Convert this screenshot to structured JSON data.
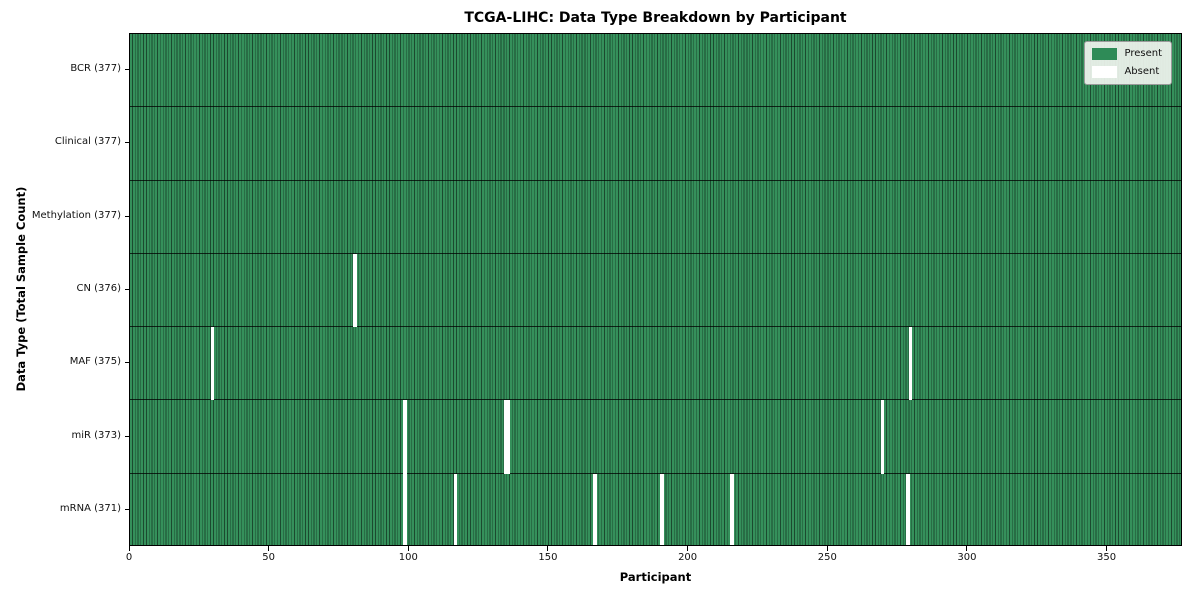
{
  "chart_data": {
    "type": "heatmap",
    "title": "TCGA-LIHC: Data Type Breakdown by Participant",
    "xlabel": "Participant",
    "ylabel": "Data Type (Total Sample Count)",
    "n_participants": 377,
    "x_ticks": [
      0,
      50,
      100,
      150,
      200,
      250,
      300,
      350
    ],
    "xlim": [
      0,
      377
    ],
    "grid": false,
    "legend_position": "upper right",
    "rows": [
      {
        "label": "BCR (377)",
        "present_count": 377,
        "absent_participants": []
      },
      {
        "label": "Clinical (377)",
        "present_count": 377,
        "absent_participants": []
      },
      {
        "label": "Methylation (377)",
        "present_count": 377,
        "absent_participants": []
      },
      {
        "label": "CN (376)",
        "present_count": 376,
        "absent_participants": [
          80
        ]
      },
      {
        "label": "MAF (375)",
        "present_count": 375,
        "absent_participants": [
          29,
          279
        ]
      },
      {
        "label": "miR (373)",
        "present_count": 373,
        "absent_participants": [
          98,
          134,
          135,
          269
        ]
      },
      {
        "label": "mRNA (371)",
        "present_count": 371,
        "absent_participants": [
          98,
          116,
          166,
          190,
          215,
          278
        ]
      }
    ],
    "legend": [
      {
        "label": "Present",
        "color": "#2e8b57"
      },
      {
        "label": "Absent",
        "color": "#ffffff"
      }
    ],
    "colors": {
      "present_fill": "#35905b",
      "cell_edge": "#1b4a2f",
      "row_separator": "rgba(0,0,0,0.75)",
      "spine": "#000000",
      "absent_fill": "#ffffff"
    }
  }
}
